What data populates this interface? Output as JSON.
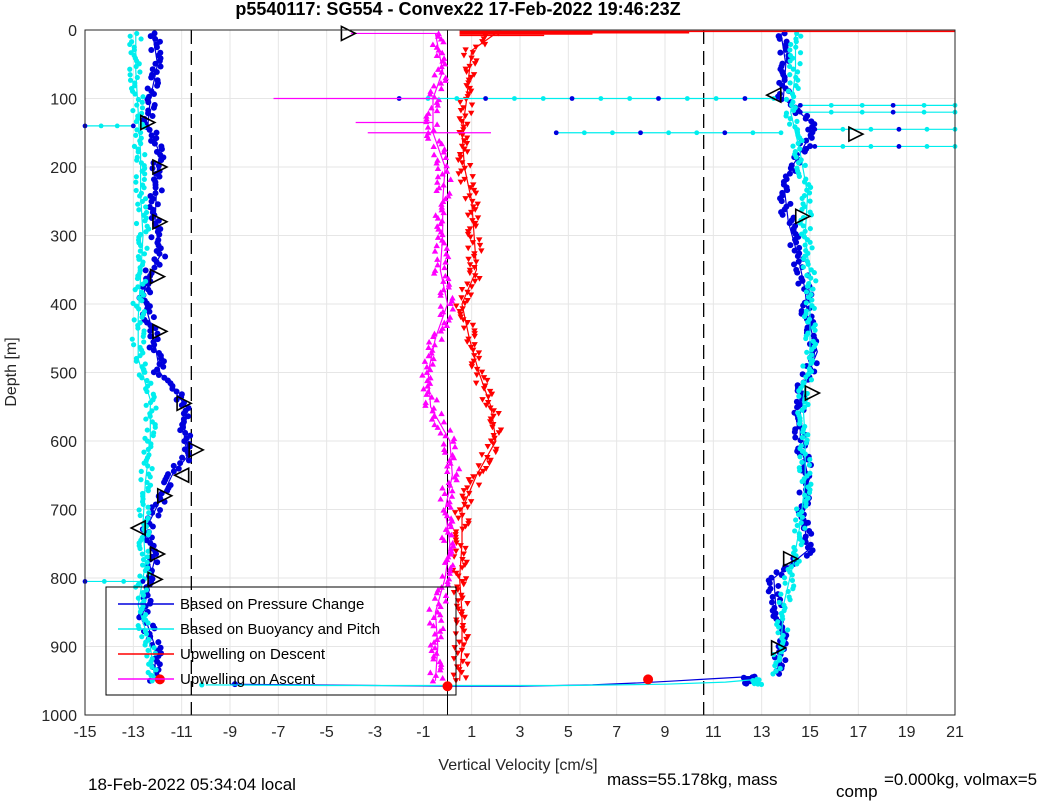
{
  "chart_data": {
    "type": "scatter",
    "title": "p5540117: SG554 - Convex22 17-Feb-2022 19:46:23Z",
    "xlabel": "Vertical Velocity [cm/s]",
    "ylabel": "Depth [m]",
    "xlim": [
      -15,
      21
    ],
    "ylim": [
      0,
      1000
    ],
    "y_reversed": true,
    "grid": true,
    "xticks": [
      -15,
      -13,
      -11,
      -9,
      -7,
      -5,
      -3,
      -1,
      1,
      3,
      5,
      7,
      9,
      11,
      13,
      15,
      17,
      19,
      21
    ],
    "yticks": [
      0,
      100,
      200,
      300,
      400,
      500,
      600,
      700,
      800,
      900,
      1000
    ],
    "ref_lines_x": [
      -10.6,
      10.6,
      0
    ],
    "legend": {
      "placement": "bottom-left",
      "entries": [
        {
          "label": "Based on Pressure Change",
          "color": "#0000dd"
        },
        {
          "label": "Based on Buoyancy and Pitch",
          "color": "#00eeee"
        },
        {
          "label": "Upwelling on Descent",
          "color": "#ff0000"
        },
        {
          "label": "Upwelling on Ascent",
          "color": "#ff00ff"
        }
      ]
    },
    "series": [
      {
        "name": "Based on Pressure Change",
        "color": "#0000dd",
        "profiles": [
          {
            "depths": [
              5,
              50,
              100,
              140,
              180,
              200,
              280,
              330,
              360,
              390,
              440,
              500,
              550,
              600,
              620,
              650,
              680,
              730,
              770,
              800,
              850,
              900,
              950
            ],
            "values": [
              -12.2,
              -12.0,
              -12.3,
              -12.4,
              -11.9,
              -12.0,
              -12.1,
              -11.9,
              -12.4,
              -12.6,
              -12.2,
              -11.9,
              -10.8,
              -10.9,
              -10.7,
              -11.4,
              -11.8,
              -12.5,
              -12.1,
              -12.3,
              -12.6,
              -12.1,
              -12.1
            ]
          },
          {
            "depths": [
              955,
              956,
              957,
              958,
              958,
              956,
              953,
              950,
              948,
              946,
              944
            ],
            "values": [
              -9.0,
              -6.0,
              -3.0,
              0.0,
              3.0,
              6.0,
              8.0,
              9.5,
              10.5,
              11.5,
              12.5
            ]
          },
          {
            "depths": [
              5,
              50,
              100,
              140,
              180,
              220,
              280,
              330,
              380,
              420,
              470,
              530,
              600,
              650,
              700,
              760,
              800,
              850,
              900,
              940
            ],
            "values": [
              13.8,
              14.0,
              13.9,
              15.2,
              14.6,
              13.9,
              14.1,
              14.5,
              14.8,
              14.9,
              15.3,
              14.6,
              14.6,
              14.9,
              14.7,
              14.9,
              13.5,
              13.6,
              13.9,
              13.6
            ]
          }
        ]
      },
      {
        "name": "Based on Buoyancy and Pitch",
        "color": "#00eeee",
        "profiles": [
          {
            "depths": [
              5,
              60,
              120,
              180,
              240,
              300,
              360,
              420,
              480,
              540,
              600,
              660,
              720,
              780,
              840,
              900,
              950
            ],
            "values": [
              -12.9,
              -12.9,
              -12.8,
              -12.7,
              -12.7,
              -12.6,
              -12.7,
              -12.8,
              -12.8,
              -12.3,
              -12.3,
              -12.5,
              -12.6,
              -12.5,
              -12.8,
              -12.3,
              -12.1
            ]
          },
          {
            "depths": [
              956,
              957,
              957,
              957,
              955,
              952,
              948
            ],
            "values": [
              -10.0,
              -5.0,
              0.0,
              5.0,
              9.0,
              11.5,
              12.8
            ]
          },
          {
            "depths": [
              5,
              60,
              120,
              180,
              240,
              300,
              360,
              420,
              480,
              540,
              600,
              660,
              720,
              780,
              840,
              900,
              940
            ],
            "values": [
              14.4,
              14.4,
              14.2,
              14.6,
              14.9,
              14.8,
              15.0,
              15.0,
              15.0,
              14.7,
              14.8,
              14.8,
              14.6,
              14.3,
              13.9,
              13.8,
              13.5
            ]
          }
        ]
      },
      {
        "name": "Upwelling on Descent",
        "color": "#ff0000",
        "profiles": [
          {
            "depths": [
              5,
              30,
              60,
              100,
              150,
              200,
              250,
              300,
              350,
              400,
              450,
              500,
              550,
              600,
              650,
              700,
              750,
              800,
              850,
              900,
              950
            ],
            "values": [
              2.0,
              1.0,
              0.9,
              0.8,
              0.6,
              0.7,
              1.0,
              1.1,
              1.2,
              0.6,
              0.9,
              1.3,
              1.8,
              2.0,
              1.2,
              0.6,
              0.6,
              0.5,
              0.6,
              0.6,
              0.5
            ]
          }
        ]
      },
      {
        "name": "Upwelling on Ascent",
        "color": "#ff00ff",
        "profiles": [
          {
            "depths": [
              5,
              60,
              100,
              150,
              200,
              250,
              300,
              350,
              400,
              450,
              500,
              550,
              600,
              650,
              700,
              750,
              800,
              850,
              900,
              950
            ],
            "values": [
              -0.5,
              -0.2,
              -0.6,
              -0.6,
              -0.1,
              -0.2,
              -0.2,
              -0.3,
              0.0,
              -0.5,
              -0.8,
              -0.7,
              0.1,
              0.2,
              -0.1,
              0.1,
              -0.1,
              -0.5,
              -0.4,
              -0.5
            ]
          }
        ]
      }
    ],
    "descent_spikes": {
      "color": "#ff0000",
      "depths": [
        2,
        4,
        6,
        8
      ],
      "values": [
        21,
        10,
        6,
        4
      ]
    },
    "horizontal_spikes": {
      "color": "#00eeee",
      "items": [
        {
          "depth": 100,
          "from": -2.0,
          "to": 13.5
        },
        {
          "depth": 150,
          "from": 4.5,
          "to": 13.8
        },
        {
          "depth": 110,
          "from": 14.6,
          "to": 21
        },
        {
          "depth": 120,
          "from": 14.6,
          "to": 21
        },
        {
          "depth": 145,
          "from": 15.2,
          "to": 21
        },
        {
          "depth": 170,
          "from": 15.2,
          "to": 21
        },
        {
          "depth": 140,
          "from": -15,
          "to": -13.0
        },
        {
          "depth": 805,
          "from": -15,
          "to": -12.6
        }
      ]
    },
    "ascent_spikes": {
      "color": "#ff00ff",
      "items": [
        {
          "depth": 100,
          "from": -7.2,
          "to": -0.4
        },
        {
          "depth": 5,
          "from": -4.0,
          "to": -0.4
        },
        {
          "depth": 135,
          "from": -3.8,
          "to": -0.6
        },
        {
          "depth": 150,
          "from": -3.3,
          "to": 1.8
        }
      ]
    },
    "markers": [
      {
        "value": -4.1,
        "depth": 5,
        "dir": "right"
      },
      {
        "value": -12.4,
        "depth": 135,
        "dir": "right"
      },
      {
        "value": -11.9,
        "depth": 200,
        "dir": "right"
      },
      {
        "value": -11.9,
        "depth": 280,
        "dir": "right"
      },
      {
        "value": -12.0,
        "depth": 360,
        "dir": "right"
      },
      {
        "value": -11.9,
        "depth": 440,
        "dir": "right"
      },
      {
        "value": -10.9,
        "depth": 545,
        "dir": "right"
      },
      {
        "value": -10.4,
        "depth": 613,
        "dir": "right"
      },
      {
        "value": -11.0,
        "depth": 650,
        "dir": "left"
      },
      {
        "value": -11.7,
        "depth": 680,
        "dir": "right"
      },
      {
        "value": -12.8,
        "depth": 727,
        "dir": "left"
      },
      {
        "value": -12.0,
        "depth": 765,
        "dir": "right"
      },
      {
        "value": -12.1,
        "depth": 802,
        "dir": "right"
      },
      {
        "value": 13.5,
        "depth": 95,
        "dir": "left"
      },
      {
        "value": 16.9,
        "depth": 152,
        "dir": "right"
      },
      {
        "value": 14.7,
        "depth": 272,
        "dir": "right"
      },
      {
        "value": 15.1,
        "depth": 530,
        "dir": "right"
      },
      {
        "value": 14.2,
        "depth": 772,
        "dir": "right"
      },
      {
        "value": 13.7,
        "depth": 902,
        "dir": "right"
      }
    ],
    "points_red": [
      {
        "value": 8.3,
        "depth": 948
      },
      {
        "value": -11.9,
        "depth": 948
      },
      {
        "value": 0.0,
        "depth": 958
      }
    ]
  },
  "footer": {
    "local_time": "18-Feb-2022 05:34:04 local",
    "mass_text": "mass=55.178kg, mass",
    "comp_sub": "comp",
    "vol_text": "=0.000kg, volmax=5"
  }
}
